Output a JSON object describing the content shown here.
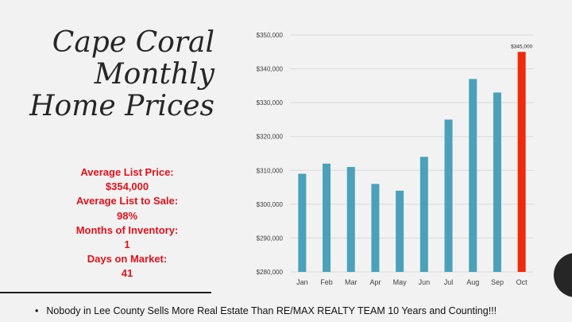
{
  "slide": {
    "title_lines": [
      "Cape Coral",
      "Monthly",
      "Home Prices"
    ],
    "stats_lines": [
      "Average List Price:",
      "$354,000",
      "Average List to Sale:",
      "98%",
      "Months of Inventory:",
      "1",
      "Days on Market:",
      "41"
    ],
    "footer": {
      "bullet": "•",
      "text": "Nobody in Lee County Sells More Real Estate Than RE/MAX REALTY TEAM  10 Years and Counting!!!"
    }
  },
  "colors": {
    "bar": "#4aa1b9",
    "highlight_bar": "#ee2a0c",
    "stats_text": "#e4101a",
    "grid": "#d9d9d9",
    "axis_text": "#404040"
  },
  "chart_data": {
    "type": "bar",
    "categories": [
      "Jan",
      "Feb",
      "Mar",
      "Apr",
      "May",
      "Jun",
      "Jul",
      "Aug",
      "Sep",
      "Oct"
    ],
    "values": [
      309000,
      312000,
      311000,
      306000,
      304000,
      314000,
      325000,
      337000,
      333000,
      345000
    ],
    "highlight_index": 9,
    "data_labels": [
      {
        "category": "Oct",
        "text": "$345,000"
      }
    ],
    "ylim": [
      280000,
      350000
    ],
    "yticks": [
      280000,
      290000,
      300000,
      310000,
      320000,
      330000,
      340000,
      350000
    ],
    "ytick_labels": [
      "$280,000",
      "$290,000",
      "$300,000",
      "$310,000",
      "$320,000",
      "$330,000",
      "$340,000",
      "$350,000"
    ],
    "grid": true,
    "legend": "none",
    "title": "",
    "xlabel": "",
    "ylabel": ""
  }
}
